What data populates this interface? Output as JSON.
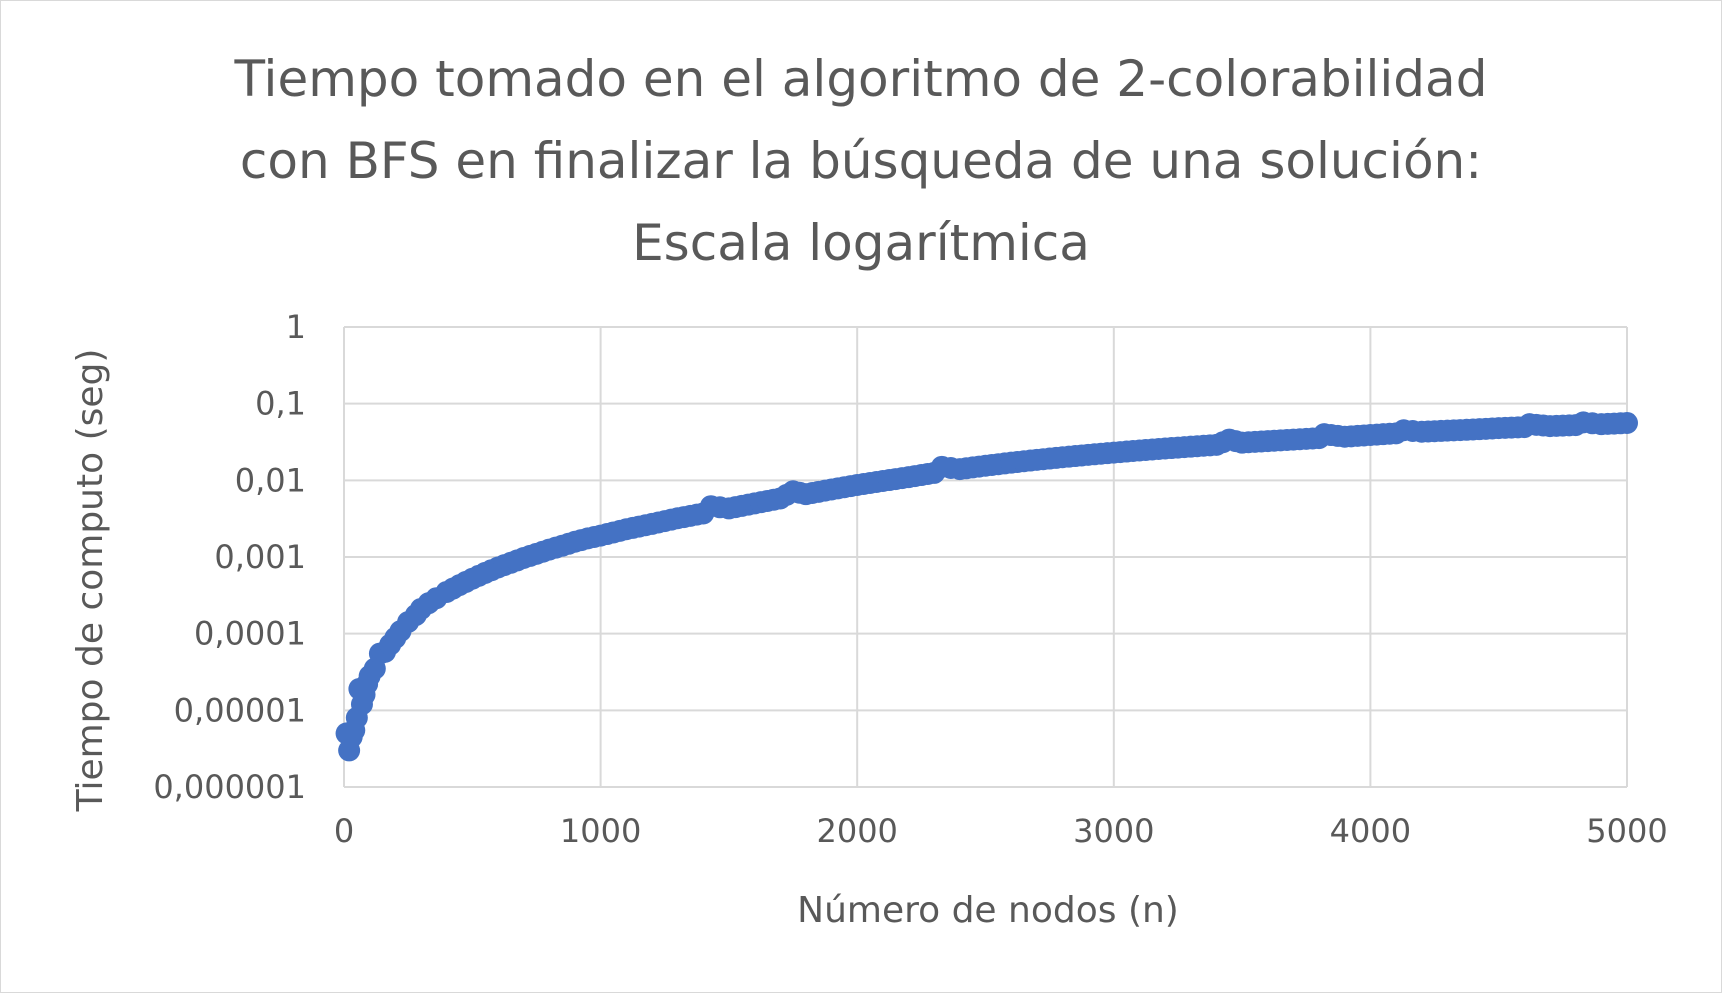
{
  "chart_data": {
    "type": "scatter",
    "title_lines": [
      "Tiempo tomado en el algoritmo de 2-colorabilidad",
      "con BFS en finalizar la búsqueda de una solución:",
      "Escala logarítmica"
    ],
    "xlabel": "Número de nodos (n)",
    "ylabel": "Tiempo de computo (seg)",
    "xlim": [
      0,
      5000
    ],
    "ylim": [
      1e-06,
      1
    ],
    "y_scale": "log",
    "x_ticks": [
      "0",
      "1000",
      "2000",
      "3000",
      "4000",
      "5000"
    ],
    "y_ticks": [
      "1",
      "0,1",
      "0,01",
      "0,001",
      "0,0001",
      "0,00001",
      "0,000001"
    ],
    "grid": true,
    "legend": "none",
    "marker_color": "#4472C4",
    "series": [
      {
        "points": [
          [
            10,
            5e-06
          ],
          [
            20,
            3e-06
          ],
          [
            30,
            4.5e-06
          ],
          [
            40,
            5.5e-06
          ],
          [
            50,
            8e-06
          ],
          [
            60,
            1.9e-05
          ],
          [
            70,
            1.2e-05
          ],
          [
            80,
            1.6e-05
          ],
          [
            90,
            2.2e-05
          ],
          [
            100,
            2.8e-05
          ],
          [
            120,
            3.5e-05
          ],
          [
            140,
            5.5e-05
          ],
          [
            160,
            5.8e-05
          ],
          [
            180,
            7.2e-05
          ],
          [
            200,
            8.8e-05
          ],
          [
            220,
            0.000108
          ],
          [
            250,
            0.000142
          ],
          [
            280,
            0.000175
          ],
          [
            300,
            0.00021
          ],
          [
            330,
            0.00025
          ],
          [
            360,
            0.00029
          ],
          [
            400,
            0.00035
          ],
          [
            450,
            0.00043
          ],
          [
            500,
            0.00052
          ],
          [
            550,
            0.00062
          ],
          [
            600,
            0.00073
          ],
          [
            650,
            0.00084
          ],
          [
            700,
            0.00097
          ],
          [
            750,
            0.0011
          ],
          [
            800,
            0.00125
          ],
          [
            850,
            0.0014
          ],
          [
            900,
            0.00158
          ],
          [
            950,
            0.00175
          ],
          [
            1000,
            0.0019
          ],
          [
            1100,
            0.0023
          ],
          [
            1200,
            0.0027
          ],
          [
            1300,
            0.0032
          ],
          [
            1400,
            0.0037
          ],
          [
            1430,
            0.0046
          ],
          [
            1500,
            0.0043
          ],
          [
            1600,
            0.005
          ],
          [
            1700,
            0.0058
          ],
          [
            1750,
            0.0072
          ],
          [
            1800,
            0.0066
          ],
          [
            1900,
            0.0076
          ],
          [
            2000,
            0.0087
          ],
          [
            2100,
            0.0098
          ],
          [
            2200,
            0.011
          ],
          [
            2300,
            0.0125
          ],
          [
            2330,
            0.015
          ],
          [
            2400,
            0.014
          ],
          [
            2500,
            0.0155
          ],
          [
            2600,
            0.017
          ],
          [
            2700,
            0.0185
          ],
          [
            2800,
            0.02
          ],
          [
            2900,
            0.0215
          ],
          [
            3000,
            0.023
          ],
          [
            3100,
            0.0245
          ],
          [
            3200,
            0.026
          ],
          [
            3300,
            0.0275
          ],
          [
            3400,
            0.029
          ],
          [
            3450,
            0.034
          ],
          [
            3500,
            0.031
          ],
          [
            3600,
            0.0325
          ],
          [
            3700,
            0.034
          ],
          [
            3800,
            0.0355
          ],
          [
            3820,
            0.04
          ],
          [
            3900,
            0.037
          ],
          [
            4000,
            0.039
          ],
          [
            4100,
            0.041
          ],
          [
            4130,
            0.045
          ],
          [
            4200,
            0.043
          ],
          [
            4300,
            0.0445
          ],
          [
            4400,
            0.046
          ],
          [
            4500,
            0.048
          ],
          [
            4600,
            0.0495
          ],
          [
            4620,
            0.054
          ],
          [
            4700,
            0.051
          ],
          [
            4800,
            0.0525
          ],
          [
            4830,
            0.057
          ],
          [
            4900,
            0.054
          ],
          [
            5000,
            0.056
          ]
        ]
      }
    ]
  }
}
